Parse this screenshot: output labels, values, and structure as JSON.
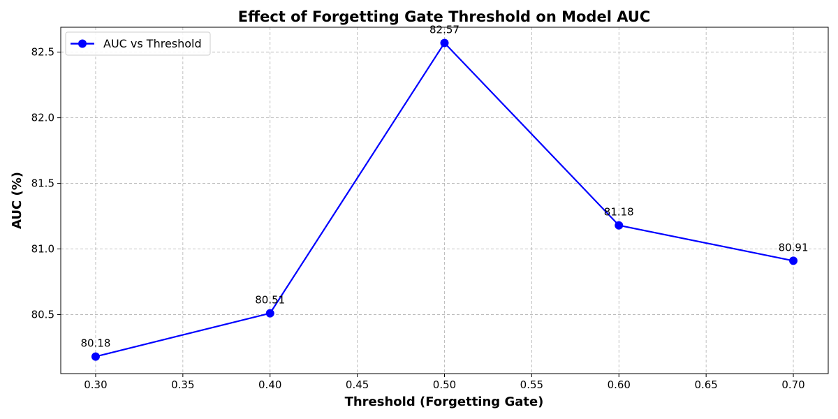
{
  "chart_data": {
    "type": "line",
    "title": "Effect of Forgetting Gate Threshold on Model AUC",
    "xlabel": "Threshold (Forgetting Gate)",
    "ylabel": "AUC (%)",
    "xlim": [
      0.28,
      0.72
    ],
    "ylim": [
      80.05,
      82.69
    ],
    "xticks": [
      "0.30",
      "0.35",
      "0.40",
      "0.45",
      "0.50",
      "0.55",
      "0.60",
      "0.65",
      "0.70"
    ],
    "yticks": [
      "80.5",
      "81.0",
      "81.5",
      "82.0",
      "82.5"
    ],
    "grid": true,
    "legend_position": "top-left",
    "series": [
      {
        "name": "AUC vs Threshold",
        "color": "#0000ff",
        "x": [
          0.3,
          0.4,
          0.5,
          0.6,
          0.7
        ],
        "y": [
          80.18,
          80.51,
          82.57,
          81.18,
          80.91
        ],
        "labels": [
          "80.18",
          "80.51",
          "82.57",
          "81.18",
          "80.91"
        ]
      }
    ]
  }
}
